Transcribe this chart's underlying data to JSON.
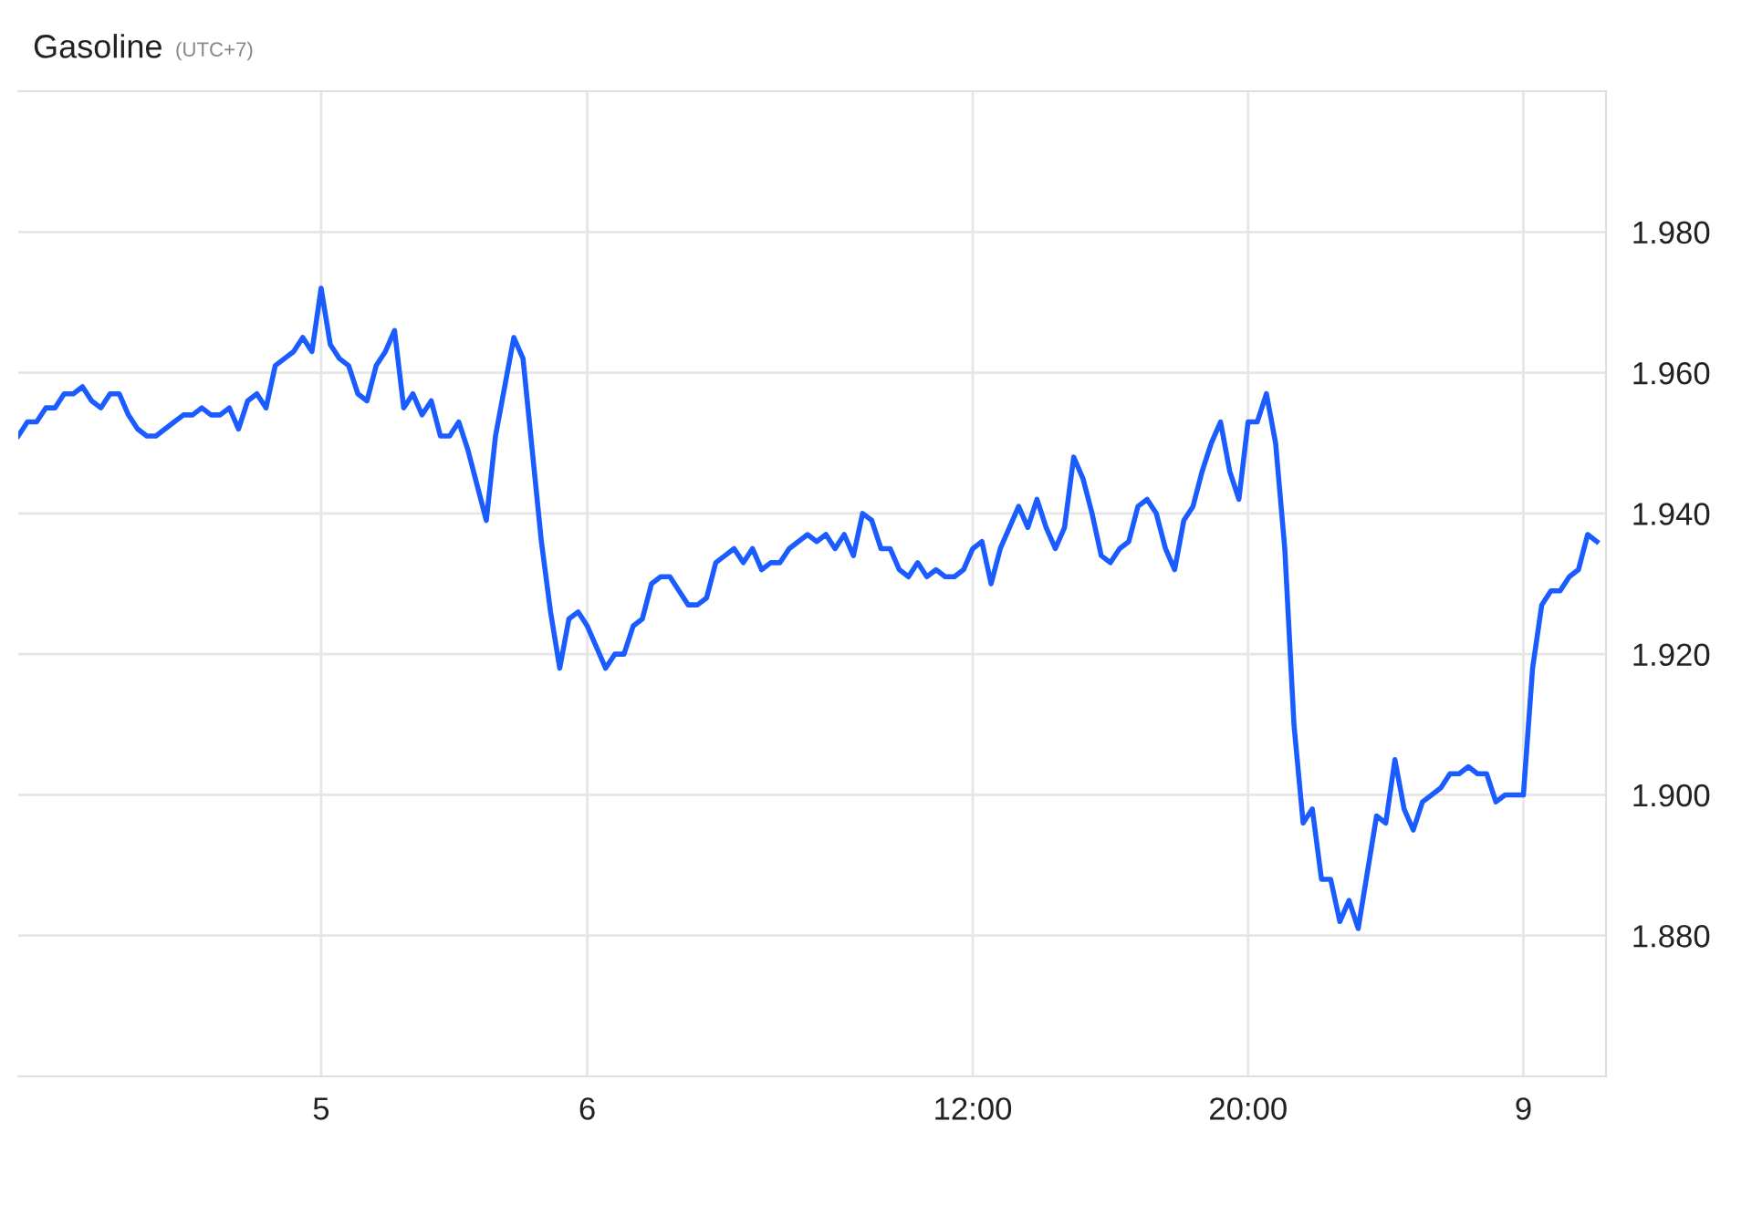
{
  "chart_data": {
    "type": "line",
    "title": "Gasoline",
    "subtitle": "(UTC+7)",
    "categories": [
      null,
      null,
      null,
      null,
      null,
      null,
      null,
      null,
      null,
      null,
      null,
      null,
      null,
      null,
      null,
      null,
      null,
      null,
      null,
      null,
      null,
      null,
      null,
      null,
      null,
      null,
      null,
      null,
      null,
      null,
      null,
      null,
      null,
      "5",
      null,
      null,
      null,
      null,
      null,
      null,
      null,
      null,
      null,
      null,
      null,
      null,
      null,
      null,
      null,
      null,
      null,
      null,
      null,
      null,
      null,
      null,
      null,
      null,
      null,
      null,
      null,
      null,
      "6",
      null,
      null,
      null,
      null,
      null,
      null,
      null,
      null,
      null,
      null,
      null,
      null,
      null,
      null,
      null,
      null,
      null,
      null,
      null,
      null,
      null,
      null,
      null,
      null,
      null,
      null,
      null,
      null,
      null,
      null,
      null,
      null,
      null,
      null,
      null,
      null,
      null,
      null,
      null,
      null,
      null,
      "12:00",
      null,
      null,
      null,
      null,
      null,
      null,
      null,
      null,
      null,
      null,
      null,
      null,
      null,
      null,
      null,
      null,
      null,
      null,
      null,
      null,
      null,
      null,
      null,
      null,
      null,
      null,
      null,
      null,
      null,
      "20:00",
      null,
      null,
      null,
      null,
      null,
      null,
      null,
      null,
      null,
      null,
      null,
      null,
      null,
      null,
      null,
      null,
      null,
      null,
      null,
      null,
      null,
      null,
      null,
      null,
      null,
      null,
      null,
      null,
      null,
      "9",
      null,
      null,
      null,
      null,
      null,
      null,
      null,
      null
    ],
    "series": [
      {
        "color": "#1a5cff",
        "values": [
          1.951,
          1.953,
          1.953,
          1.955,
          1.955,
          1.957,
          1.957,
          1.958,
          1.956,
          1.955,
          1.957,
          1.957,
          1.954,
          1.952,
          1.951,
          1.951,
          1.952,
          1.953,
          1.954,
          1.954,
          1.955,
          1.954,
          1.954,
          1.955,
          1.952,
          1.956,
          1.957,
          1.955,
          1.961,
          1.962,
          1.963,
          1.965,
          1.963,
          1.972,
          1.964,
          1.962,
          1.961,
          1.957,
          1.956,
          1.961,
          1.963,
          1.966,
          1.955,
          1.957,
          1.954,
          1.956,
          1.951,
          1.951,
          1.953,
          1.949,
          1.944,
          1.939,
          1.951,
          1.958,
          1.965,
          1.962,
          1.949,
          1.936,
          1.926,
          1.918,
          1.925,
          1.926,
          1.924,
          1.921,
          1.918,
          1.92,
          1.92,
          1.924,
          1.925,
          1.93,
          1.931,
          1.931,
          1.929,
          1.927,
          1.927,
          1.928,
          1.933,
          1.934,
          1.935,
          1.933,
          1.935,
          1.932,
          1.933,
          1.933,
          1.935,
          1.936,
          1.937,
          1.936,
          1.937,
          1.935,
          1.937,
          1.934,
          1.94,
          1.939,
          1.935,
          1.935,
          1.932,
          1.931,
          1.933,
          1.931,
          1.932,
          1.931,
          1.931,
          1.932,
          1.935,
          1.936,
          1.93,
          1.935,
          1.938,
          1.941,
          1.938,
          1.942,
          1.938,
          1.935,
          1.938,
          1.948,
          1.945,
          1.94,
          1.934,
          1.933,
          1.935,
          1.936,
          1.941,
          1.942,
          1.94,
          1.935,
          1.932,
          1.939,
          1.941,
          1.946,
          1.95,
          1.953,
          1.946,
          1.942,
          1.953,
          1.953,
          1.957,
          1.95,
          1.935,
          1.91,
          1.896,
          1.898,
          1.888,
          1.888,
          1.882,
          1.885,
          1.881,
          1.889,
          1.897,
          1.896,
          1.905,
          1.898,
          1.895,
          1.899,
          1.9,
          1.901,
          1.903,
          1.903,
          1.904,
          1.903,
          1.903,
          1.899,
          1.9,
          1.9,
          1.9,
          1.918,
          1.927,
          1.929,
          1.929,
          1.931,
          1.932,
          1.937,
          1.936
        ]
      }
    ],
    "ylim": [
      1.86,
      2.0
    ],
    "yticks": [
      {
        "value": 1.88,
        "label": "1.880"
      },
      {
        "value": 1.9,
        "label": "1.900"
      },
      {
        "value": 1.92,
        "label": "1.920"
      },
      {
        "value": 1.94,
        "label": "1.940"
      },
      {
        "value": 1.96,
        "label": "1.960"
      },
      {
        "value": 1.98,
        "label": "1.980"
      }
    ],
    "grid": true,
    "marker": "none",
    "line_style": "solid"
  }
}
